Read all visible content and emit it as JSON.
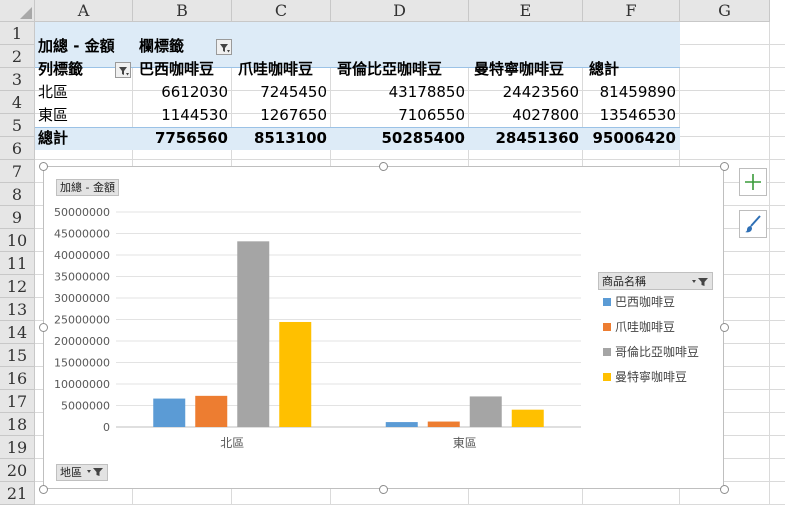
{
  "columns": [
    "A",
    "B",
    "C",
    "D",
    "E",
    "F",
    "G"
  ],
  "rows": [
    "1",
    "2",
    "3",
    "4",
    "5",
    "6",
    "7",
    "8",
    "9",
    "10",
    "11",
    "12",
    "13",
    "14",
    "15",
    "16",
    "17",
    "18",
    "19",
    "20",
    "21"
  ],
  "pivot": {
    "value_field": "加總 - 金額",
    "column_labels": "欄標籤",
    "row_labels": "列標籤",
    "headers": [
      "巴西咖啡豆",
      "爪哇咖啡豆",
      "哥倫比亞咖啡豆",
      "曼特寧咖啡豆",
      "總計"
    ],
    "data_rows": [
      {
        "label": "北區",
        "values": [
          "6612030",
          "7245450",
          "43178850",
          "24423560",
          "81459890"
        ]
      },
      {
        "label": "東區",
        "values": [
          "1144530",
          "1267650",
          "7106550",
          "4027800",
          "13546530"
        ]
      }
    ],
    "total_row": {
      "label": "總計",
      "values": [
        "7756560",
        "8513100",
        "50285400",
        "28451360",
        "95006420"
      ]
    }
  },
  "pivot_chart": {
    "value_field_button": "加總 - 金額",
    "axis_field_button": "地區",
    "legend_field_button": "商品名稱",
    "side_buttons": [
      "plus-icon",
      "brush-icon"
    ]
  },
  "chart_data": {
    "type": "bar",
    "categories": [
      "北區",
      "東區"
    ],
    "series": [
      {
        "name": "巴西咖啡豆",
        "color": "#5b9bd5",
        "values": [
          6612030,
          1144530
        ]
      },
      {
        "name": "爪哇咖啡豆",
        "color": "#ed7d31",
        "values": [
          7245450,
          1267650
        ]
      },
      {
        "name": "哥倫比亞咖啡豆",
        "color": "#a5a5a5",
        "values": [
          43178850,
          7106550
        ]
      },
      {
        "name": "曼特寧咖啡豆",
        "color": "#ffc000",
        "values": [
          24423560,
          4027800
        ]
      }
    ],
    "ylim": [
      0,
      50000000
    ],
    "yticks": [
      "0",
      "5000000",
      "10000000",
      "15000000",
      "20000000",
      "25000000",
      "30000000",
      "35000000",
      "40000000",
      "45000000",
      "50000000"
    ],
    "grid": true,
    "legend": "right",
    "title": "",
    "xlabel": "",
    "ylabel": ""
  }
}
